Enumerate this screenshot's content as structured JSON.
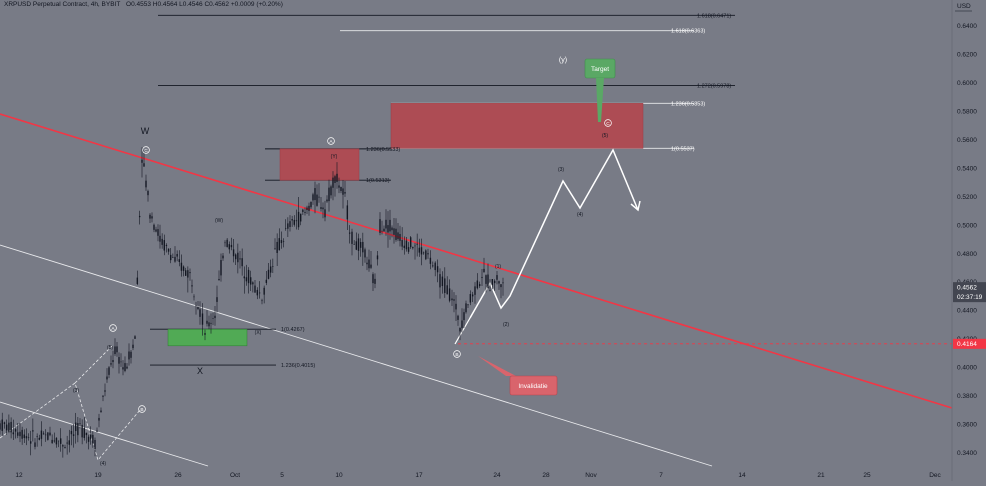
{
  "header": {
    "symbol": "XRPUSD Perpetual Contract, 4h, BYBIT",
    "ohlc": "O0.4553 H0.4564 L0.4546 C0.4562 +0.0009 (+0.20%)"
  },
  "axis": {
    "currency": "USD",
    "y_ticks": [
      "0.6400",
      "0.6200",
      "0.6000",
      "0.5800",
      "0.5600",
      "0.5400",
      "0.5200",
      "0.5000",
      "0.4800",
      "0.4600",
      "0.4400",
      "0.4200",
      "0.4000",
      "0.3800",
      "0.3600",
      "0.3400"
    ],
    "x_ticks": [
      "12",
      "19",
      "26",
      "Oct",
      "5",
      "10",
      "17",
      "24",
      "28",
      "Nov",
      "7",
      "14",
      "21",
      "25",
      "Dec"
    ]
  },
  "price_labels": {
    "current_price": "0.4562",
    "countdown": "02:37:19",
    "invalidation_price": "0.4164"
  },
  "fib_levels": [
    {
      "label": "1.618(0.6471)",
      "price": 0.6471
    },
    {
      "label": "1.618(0.6363)",
      "price": 0.6363
    },
    {
      "label": "1.272(0.5978)",
      "price": 0.5978
    },
    {
      "label": "1.236(0.5853)",
      "price": 0.5853
    },
    {
      "label": "1(0.5537)",
      "price": 0.5537
    },
    {
      "label": "1.236(0.5533)",
      "price": 0.5533
    },
    {
      "label": "1(0.5313)",
      "price": 0.5313
    },
    {
      "label": "1(0.4267)",
      "price": 0.4267
    },
    {
      "label": "1.236(0.4015)",
      "price": 0.4015
    }
  ],
  "wave_labels": {
    "w": "W",
    "x": "X",
    "y": "(y)",
    "a_top": "A",
    "a_left": "A",
    "b_left": "B",
    "b_bottom": "B",
    "c_top": "C",
    "c_box": "C",
    "y_paren": "(Y)",
    "w_paren": "(W)",
    "x_paren": "(X)",
    "n1": "(1)",
    "n2": "(2)",
    "n3": "(3)",
    "n4": "(4)",
    "n5": "(5)",
    "l3": "(3)",
    "l4": "(4)",
    "l5": "(5)"
  },
  "callouts": {
    "target": "Target",
    "invalidation": "Invalidatie"
  },
  "colors": {
    "background": "#787b86",
    "candle": "#131722",
    "trendline": "#f23645",
    "projection": "#ffffff",
    "red_zone": "#b2474f",
    "green_zone": "#4caf50",
    "invalidation_tag": "#f23645",
    "current_tag": "#434651"
  },
  "chart_data": {
    "type": "candlestick",
    "title": "XRPUSD Perpetual Contract, 4h, BYBIT",
    "ylabel": "USD",
    "ylim": [
      0.34,
      0.66
    ],
    "series": [
      {
        "name": "price path (approx)",
        "values": [
          0.355,
          0.346,
          0.37,
          0.41,
          0.43,
          0.38,
          0.55,
          0.5,
          0.46,
          0.44,
          0.428,
          0.51,
          0.49,
          0.47,
          0.52,
          0.54,
          0.5,
          0.46,
          0.49,
          0.47,
          0.445,
          0.43,
          0.46,
          0.47,
          0.456
        ]
      },
      {
        "name": "projected path",
        "values": [
          0.456,
          0.54,
          0.52,
          0.56,
          0.52
        ]
      }
    ],
    "last_close": 0.4562,
    "invalidation": 0.4164,
    "target_zone": [
      0.5537,
      0.5853
    ],
    "fib_levels": [
      0.6471,
      0.6363,
      0.5978,
      0.5853,
      0.5537,
      0.5533,
      0.5313,
      0.4267,
      0.4015
    ]
  }
}
